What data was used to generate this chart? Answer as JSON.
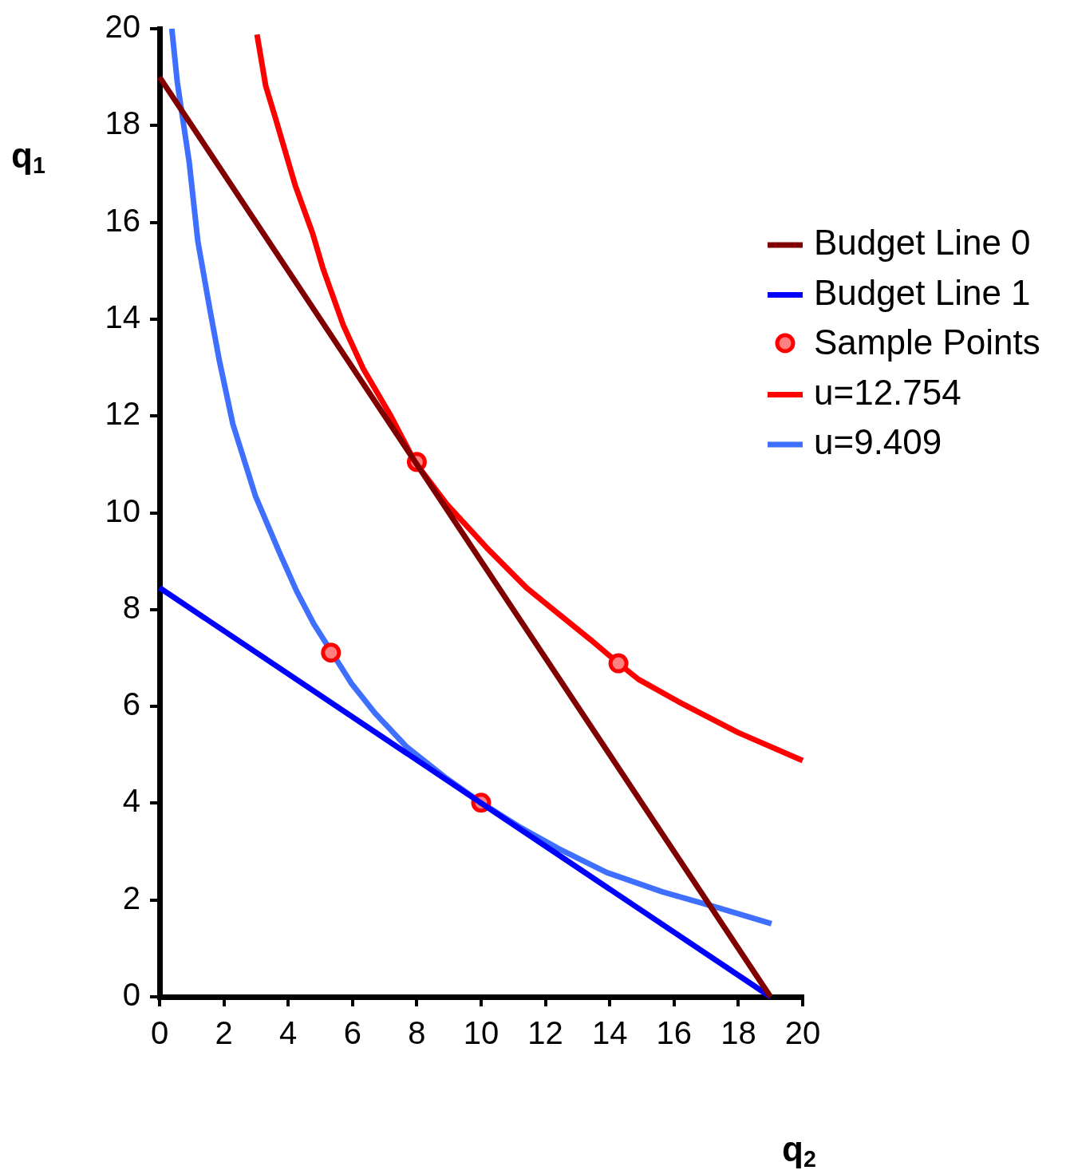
{
  "chart_data": {
    "type": "line",
    "xlabel": "q$_{2}$",
    "ylabel": "q$_{1}$",
    "xlim": [
      0,
      20
    ],
    "ylim": [
      0,
      20
    ],
    "xticks": [
      0,
      2,
      4,
      6,
      8,
      10,
      12,
      14,
      16,
      18,
      20
    ],
    "yticks": [
      0,
      2,
      4,
      6,
      8,
      10,
      12,
      14,
      16,
      18,
      20
    ],
    "grid": false,
    "legend": "right",
    "line_style": "solid",
    "series": [
      {
        "name": "Budget Line 0",
        "type": "line",
        "color": "#800000",
        "x": [
          0,
          19
        ],
        "values": [
          19,
          0
        ]
      },
      {
        "name": "Budget Line 1",
        "type": "line",
        "color": "#0000ff",
        "x": [
          0,
          19
        ],
        "values": [
          8.45,
          0
        ]
      },
      {
        "name": "Sample Points",
        "type": "scatter",
        "marker": "circle",
        "color": "#ff0000",
        "x": [
          8,
          5.33,
          10,
          14.27
        ],
        "values": [
          11.05,
          7.11,
          4.01,
          6.89
        ]
      },
      {
        "name": "u=12.754",
        "type": "line",
        "color": "#ff0000",
        "x": [
          3.03,
          3.3,
          3.6,
          4.22,
          4.76,
          5.09,
          5.71,
          6.33,
          7.2,
          7.94,
          8.93,
          10.17,
          11.41,
          12.41,
          13.4,
          14.27,
          14.89,
          16.13,
          17.99,
          20
        ],
        "values": [
          19.88,
          18.82,
          18.16,
          16.76,
          15.77,
          15.03,
          13.88,
          12.98,
          11.99,
          11.05,
          10.18,
          9.28,
          8.45,
          7.91,
          7.38,
          6.89,
          6.56,
          6.1,
          5.46,
          4.88
        ]
      },
      {
        "name": "u=9.409",
        "type": "line",
        "color": "#3f6fff",
        "x": [
          0.38,
          0.55,
          0.92,
          1.19,
          1.54,
          1.86,
          2.28,
          2.98,
          3.72,
          4.27,
          4.79,
          5.96,
          6.7,
          7.69,
          8.93,
          10,
          11.17,
          12.41,
          13.9,
          15.63,
          17.37,
          19.03
        ],
        "values": [
          20,
          18.9,
          17.25,
          15.61,
          14.29,
          13.14,
          11.83,
          10.35,
          9.19,
          8.37,
          7.71,
          6.48,
          5.86,
          5.16,
          4.51,
          4.01,
          3.52,
          3.06,
          2.57,
          2.17,
          1.84,
          1.51
        ]
      }
    ]
  }
}
